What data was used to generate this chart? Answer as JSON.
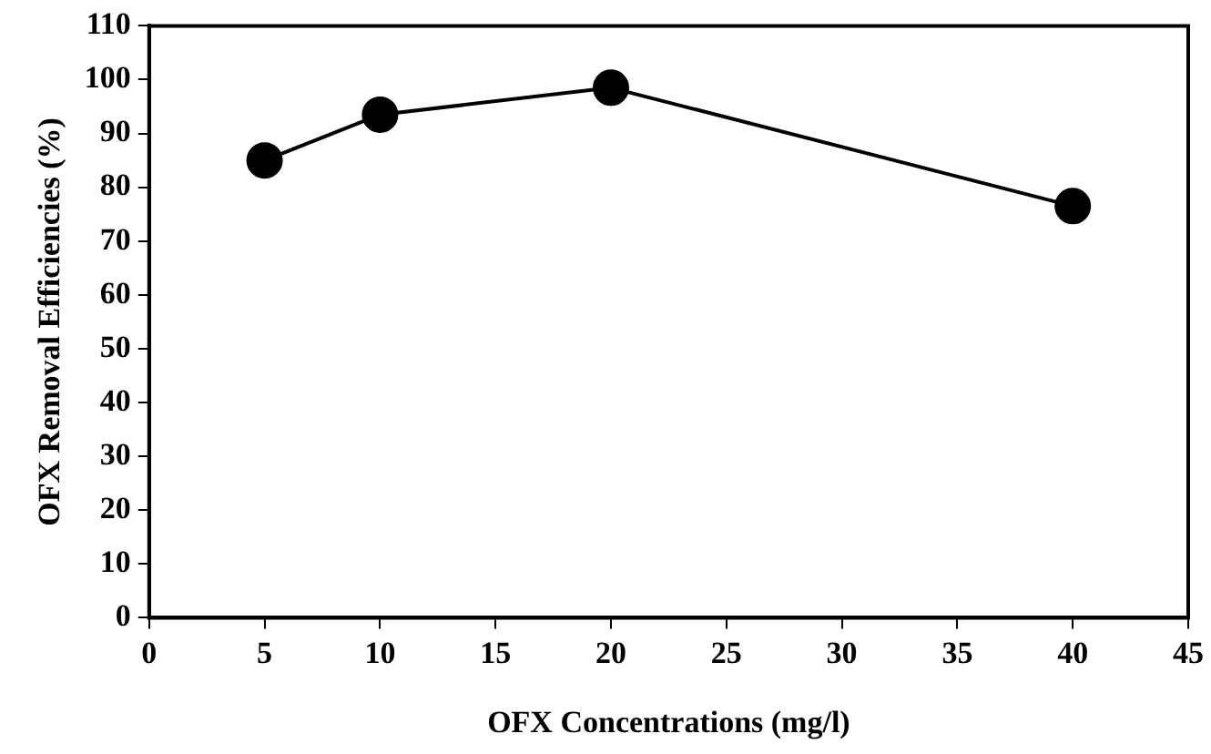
{
  "chart_data": {
    "type": "line",
    "xlabel": "OFX Concentrations (mg/l)",
    "ylabel": "OFX Removal Efficiencies (%)",
    "x": [
      5,
      10,
      20,
      40
    ],
    "series": [
      {
        "color": "#000000",
        "values": [
          85,
          93.5,
          98.5,
          76.5
        ]
      }
    ],
    "xlim": [
      0,
      45
    ],
    "xticks": [
      0,
      5,
      10,
      15,
      20,
      25,
      30,
      35,
      40,
      45
    ],
    "ylim": [
      0,
      110
    ],
    "yticks": [
      0,
      10,
      20,
      30,
      40,
      50,
      60,
      70,
      80,
      90,
      100,
      110
    ],
    "grid": false,
    "legend": false,
    "marker": "circle",
    "line_style": "solid"
  }
}
